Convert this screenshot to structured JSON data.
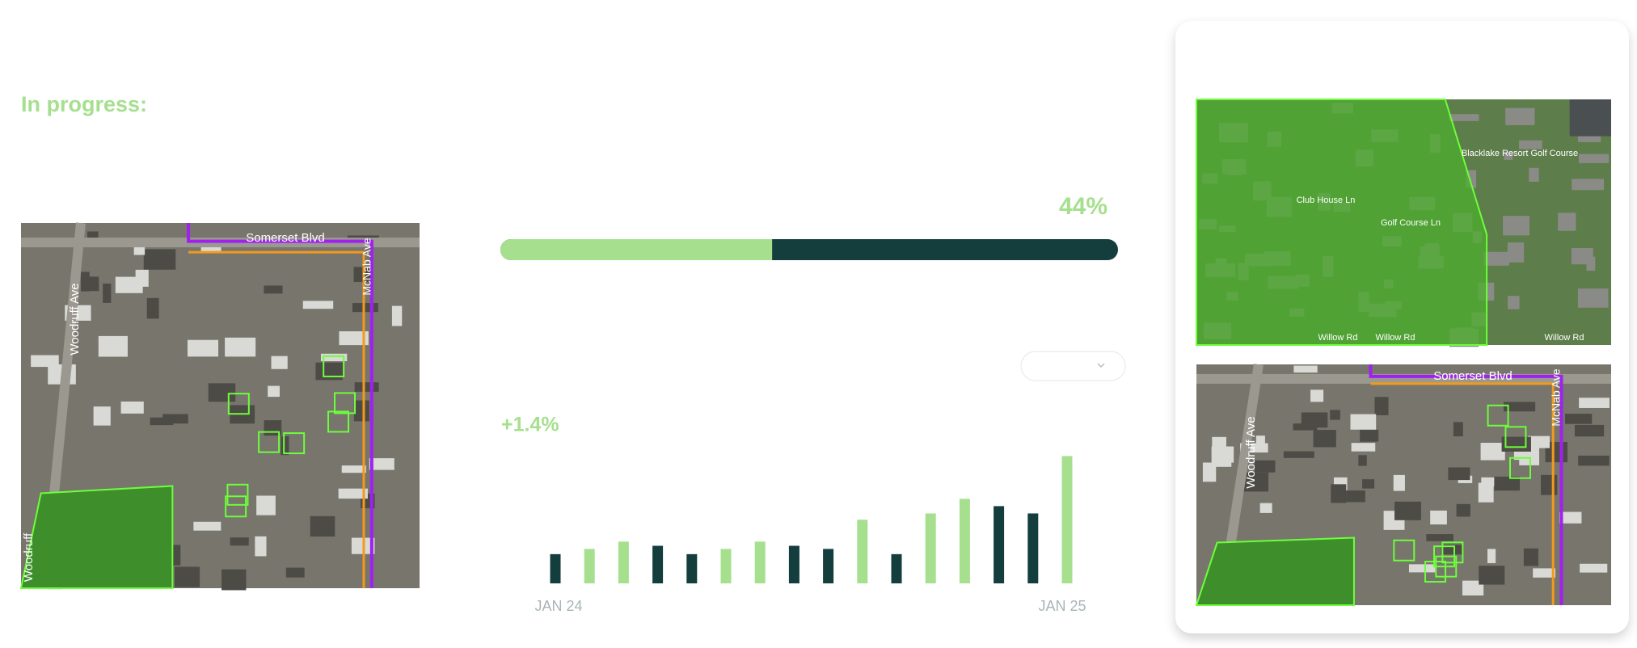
{
  "header": {
    "title": "In progress:"
  },
  "progress": {
    "value": 44,
    "value_label": "44%"
  },
  "change": "+1.4%",
  "maps": {
    "left": [
      "Somerset Blvd",
      "Woodruff Ave",
      "McNab Ave",
      "Woodruff"
    ],
    "top_right": [
      "Blacklake Resort Golf Course",
      "Club House Ln",
      "Golf Course Ln",
      "Willow Rd",
      "Willow Rd",
      "Willow Rd"
    ],
    "bottom_right": [
      "Somerset Blvd",
      "Woodruff Ave",
      "McNab Ave"
    ]
  },
  "chart_data": {
    "type": "bar",
    "categories": [
      "JAN 24",
      null,
      null,
      null,
      null,
      null,
      null,
      null,
      null,
      null,
      null,
      null,
      null,
      null,
      null,
      "JAN 25"
    ],
    "values": [
      28,
      33,
      40,
      36,
      28,
      33,
      40,
      36,
      33,
      61,
      28,
      67,
      81,
      74,
      67,
      122
    ],
    "colors": [
      "#143d3d",
      "#a6e08f",
      "#a6e08f",
      "#143d3d",
      "#143d3d",
      "#a6e08f",
      "#a6e08f",
      "#143d3d",
      "#143d3d",
      "#a6e08f",
      "#143d3d",
      "#a6e08f",
      "#a6e08f",
      "#143d3d",
      "#143d3d",
      "#a6e08f"
    ]
  }
}
